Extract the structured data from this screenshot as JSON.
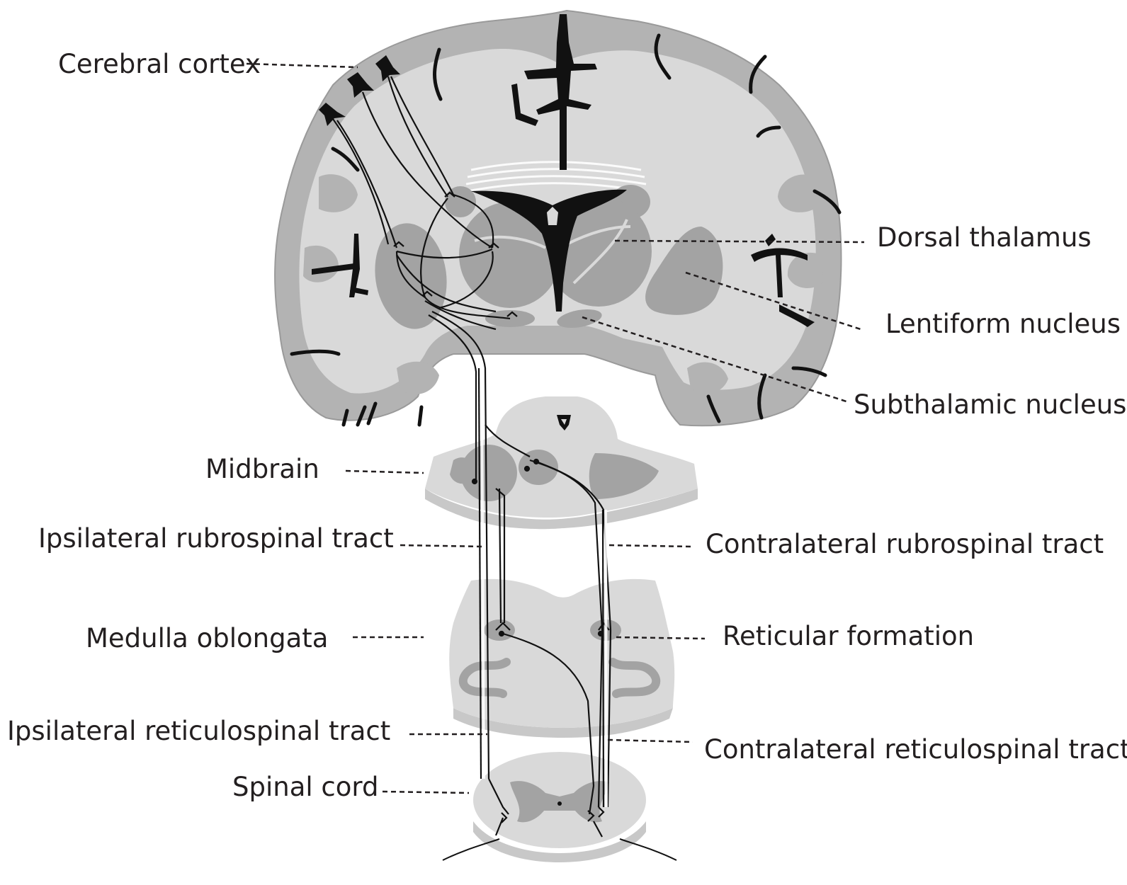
{
  "figure": {
    "labels": {
      "cerebral_cortex": "Cerebral cortex",
      "dorsal_thalamus": "Dorsal thalamus",
      "lentiform_nucleus": "Lentiform nucleus",
      "subthalamic_nucleus": "Subthalamic nucleus",
      "midbrain": "Midbrain",
      "ipsilateral_rubrospinal_tract": "Ipsilateral rubrospinal tract",
      "contralateral_rubrospinal_tract": "Contralateral rubrospinal tract",
      "medulla_oblongata": "Medulla oblongata",
      "reticular_formation": "Reticular formation",
      "ipsilateral_reticulospinal_tract": "Ipsilateral reticulospinal tract",
      "contralateral_reticulospinal_tract": "Contralateral reticulospinal tract",
      "spinal_cord": "Spinal cord"
    },
    "colors": {
      "white_matter": "#d9d9d9",
      "gray_matter": "#b3b3b3",
      "nuclei": "#a3a3a3",
      "sulci": "#111111",
      "text": "#231f20"
    }
  }
}
